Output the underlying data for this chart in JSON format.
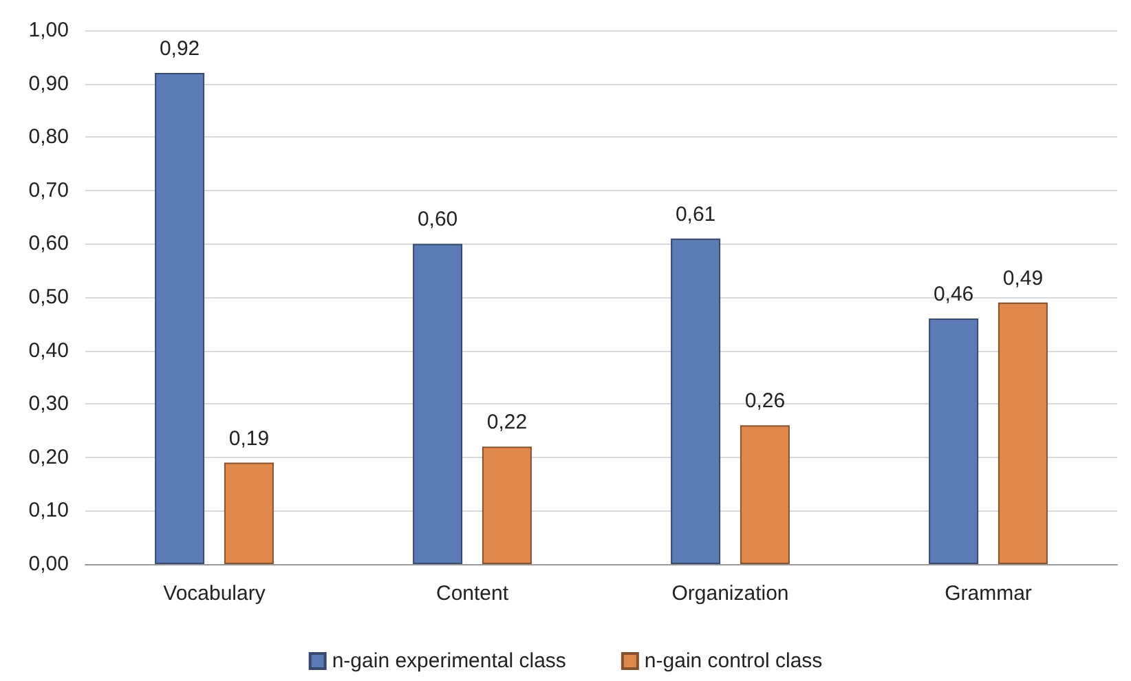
{
  "chart_data": {
    "type": "bar",
    "categories": [
      "Vocabulary",
      "Content",
      "Organization",
      "Grammar"
    ],
    "series": [
      {
        "name": "n-gain experimental class",
        "color": "#5b7bb6",
        "values": [
          0.92,
          0.6,
          0.61,
          0.46
        ],
        "value_labels": [
          "0,92",
          "0,60",
          "0,61",
          "0,46"
        ]
      },
      {
        "name": "n-gain control class",
        "color": "#e0884c",
        "values": [
          0.19,
          0.22,
          0.26,
          0.49
        ],
        "value_labels": [
          "0,19",
          "0,22",
          "0,26",
          "0,49"
        ]
      }
    ],
    "ylim": [
      0,
      1
    ],
    "yticks": [
      {
        "value": 0,
        "label": "0,00"
      },
      {
        "value": 0.1,
        "label": "0,10"
      },
      {
        "value": 0.2,
        "label": "0,20"
      },
      {
        "value": 0.3,
        "label": "0,30"
      },
      {
        "value": 0.4,
        "label": "0,40"
      },
      {
        "value": 0.5,
        "label": "0,50"
      },
      {
        "value": 0.6,
        "label": "0,60"
      },
      {
        "value": 0.7,
        "label": "0,70"
      },
      {
        "value": 0.8,
        "label": "0,80"
      },
      {
        "value": 0.9,
        "label": "0,90"
      },
      {
        "value": 1,
        "label": "1,00"
      }
    ],
    "grid": "y",
    "legend": "bottom"
  }
}
